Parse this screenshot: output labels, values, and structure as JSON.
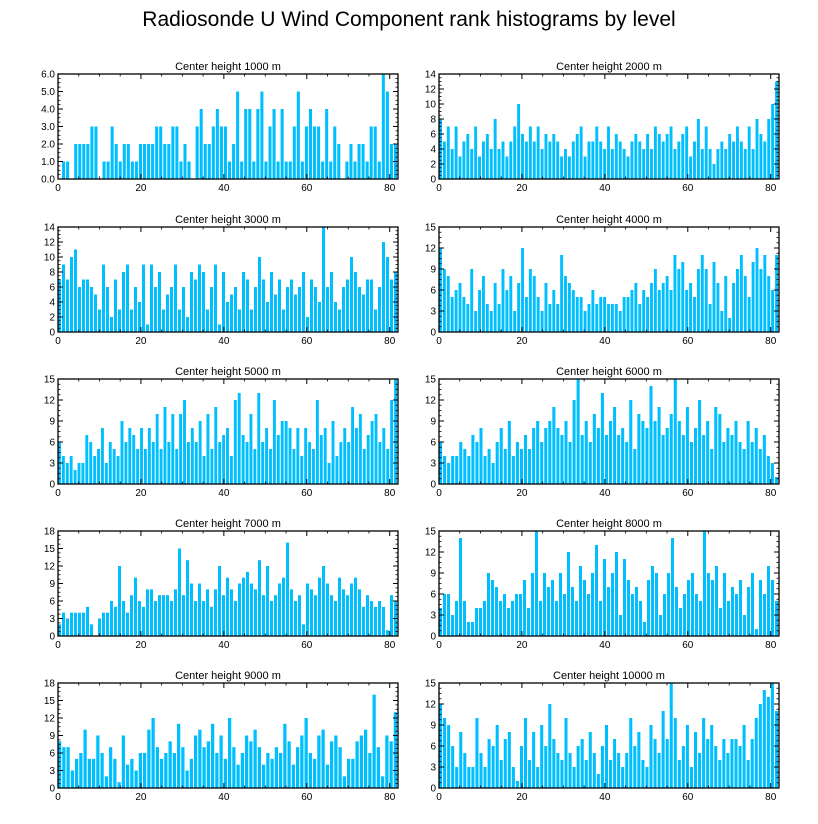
{
  "title": "Radiosonde U Wind Component rank histograms by level",
  "colors": {
    "bar": "#00BFFF",
    "axis": "#000000"
  },
  "chart_data": [
    {
      "type": "bar",
      "title": "Center height 1000 m",
      "xlim": [
        0,
        82
      ],
      "ylim": [
        0,
        6
      ],
      "yticks": [
        "0.0",
        "1.0",
        "2.0",
        "3.0",
        "4.0",
        "5.0",
        "6.0"
      ],
      "xticks": [
        0,
        20,
        40,
        60,
        80
      ],
      "values": [
        0,
        1,
        1,
        0,
        2,
        2,
        2,
        2,
        3,
        3,
        0,
        1,
        1,
        3,
        2,
        1,
        2,
        2,
        1,
        1,
        2,
        2,
        2,
        2,
        3,
        3,
        2,
        2,
        3,
        3,
        1,
        2,
        1,
        0,
        3,
        4,
        2,
        2,
        3,
        4,
        3,
        3,
        1,
        2,
        5,
        1,
        4,
        4,
        1,
        4,
        5,
        1,
        3,
        4,
        1,
        4,
        1,
        1,
        3,
        5,
        1,
        3,
        4,
        3,
        3,
        1,
        4,
        1,
        3,
        2,
        0,
        1,
        2,
        1,
        2,
        2,
        1,
        3,
        3,
        1,
        6,
        5,
        2,
        2
      ]
    },
    {
      "type": "bar",
      "title": "Center height 2000 m",
      "xlim": [
        0,
        82
      ],
      "ylim": [
        0,
        14
      ],
      "yticks": [
        "0",
        "2",
        "4",
        "6",
        "8",
        "10",
        "12",
        "14"
      ],
      "xticks": [
        0,
        20,
        40,
        60,
        80
      ],
      "values": [
        8,
        5,
        7,
        4,
        7,
        3,
        5,
        6,
        4,
        7,
        3,
        5,
        6,
        4,
        8,
        4,
        5,
        3,
        5,
        7,
        10,
        6,
        5,
        7,
        5,
        7,
        4,
        6,
        5,
        6,
        5,
        3,
        4,
        3,
        5,
        6,
        7,
        3,
        5,
        5,
        7,
        5,
        4,
        7,
        4,
        6,
        5,
        4,
        3,
        5,
        6,
        5,
        4,
        6,
        4,
        7,
        6,
        5,
        6,
        7,
        4,
        5,
        6,
        7,
        3,
        5,
        8,
        4,
        7,
        4,
        2,
        4,
        5,
        4,
        6,
        5,
        7,
        5,
        4,
        7,
        4,
        8,
        6,
        5,
        8,
        10,
        13
      ]
    },
    {
      "type": "bar",
      "title": "Center height 3000 m",
      "xlim": [
        0,
        82
      ],
      "ylim": [
        0,
        14
      ],
      "yticks": [
        "0",
        "2",
        "4",
        "6",
        "8",
        "10",
        "12",
        "14"
      ],
      "xticks": [
        0,
        20,
        40,
        60,
        80
      ],
      "values": [
        7,
        9,
        7,
        10,
        11,
        6,
        7,
        7,
        6,
        5,
        3,
        9,
        6,
        2,
        7,
        3,
        8,
        9,
        3,
        6,
        4,
        9,
        1,
        9,
        6,
        8,
        3,
        5,
        6,
        9,
        3,
        6,
        2,
        8,
        7,
        9,
        8,
        3,
        6,
        9,
        1,
        8,
        4,
        5,
        6,
        3,
        8,
        7,
        3,
        6,
        10,
        7,
        4,
        8,
        5,
        7,
        3,
        6,
        7,
        5,
        6,
        8,
        2,
        7,
        6,
        4,
        14,
        6,
        8,
        4,
        3,
        6,
        7,
        10,
        8,
        6,
        5,
        7,
        7,
        3,
        6,
        12,
        10,
        7,
        8
      ]
    },
    {
      "type": "bar",
      "title": "Center height 4000 m",
      "xlim": [
        0,
        82
      ],
      "ylim": [
        0,
        15
      ],
      "yticks": [
        "0",
        "3",
        "6",
        "9",
        "12",
        "15"
      ],
      "xticks": [
        0,
        20,
        40,
        60,
        80
      ],
      "values": [
        12,
        9,
        8,
        5,
        6,
        7,
        5,
        4,
        9,
        3,
        6,
        8,
        4,
        3,
        7,
        4,
        9,
        6,
        8,
        3,
        7,
        12,
        5,
        9,
        8,
        5,
        3,
        7,
        4,
        6,
        4,
        11,
        8,
        7,
        6,
        5,
        5,
        3,
        4,
        6,
        4,
        5,
        5,
        4,
        4,
        4,
        3,
        5,
        5,
        6,
        7,
        4,
        6,
        5,
        7,
        9,
        6,
        7,
        8,
        6,
        11,
        9,
        10,
        6,
        7,
        5,
        9,
        11,
        9,
        4,
        10,
        7,
        3,
        8,
        2,
        7,
        9,
        11,
        8,
        5,
        10,
        12,
        9,
        11,
        8,
        6,
        11
      ]
    },
    {
      "type": "bar",
      "title": "Center height 5000 m",
      "xlim": [
        0,
        82
      ],
      "ylim": [
        0,
        15
      ],
      "yticks": [
        "0",
        "3",
        "6",
        "9",
        "12",
        "15"
      ],
      "xticks": [
        0,
        20,
        40,
        60,
        80
      ],
      "values": [
        6,
        4,
        3,
        4,
        2,
        3,
        3,
        7,
        6,
        4,
        5,
        8,
        3,
        6,
        5,
        4,
        9,
        6,
        8,
        7,
        5,
        8,
        5,
        8,
        6,
        10,
        5,
        11,
        6,
        10,
        5,
        10,
        12,
        6,
        8,
        6,
        9,
        4,
        10,
        5,
        11,
        6,
        7,
        8,
        4,
        12,
        13,
        7,
        6,
        10,
        5,
        13,
        6,
        8,
        5,
        12,
        7,
        9,
        9,
        8,
        5,
        8,
        4,
        8,
        6,
        5,
        12,
        7,
        8,
        3,
        9,
        4,
        6,
        8,
        6,
        11,
        8,
        10,
        5,
        7,
        9,
        10,
        6,
        8,
        5,
        12,
        15
      ]
    },
    {
      "type": "bar",
      "title": "Center height 6000 m",
      "xlim": [
        0,
        82
      ],
      "ylim": [
        0,
        15
      ],
      "yticks": [
        "0",
        "3",
        "6",
        "9",
        "12",
        "15"
      ],
      "xticks": [
        0,
        20,
        40,
        60,
        80
      ],
      "values": [
        6,
        4,
        3,
        4,
        4,
        6,
        5,
        4,
        7,
        6,
        8,
        4,
        5,
        3,
        6,
        8,
        5,
        9,
        4,
        6,
        5,
        7,
        5,
        8,
        9,
        6,
        8,
        9,
        11,
        8,
        7,
        9,
        6,
        12,
        15,
        7,
        9,
        6,
        10,
        8,
        13,
        7,
        9,
        11,
        7,
        8,
        6,
        12,
        5,
        10,
        9,
        8,
        14,
        9,
        11,
        7,
        8,
        10,
        15,
        9,
        7,
        11,
        6,
        8,
        12,
        7,
        9,
        5,
        11,
        10,
        6,
        8,
        7,
        9,
        6,
        5,
        9,
        6,
        8,
        5,
        7,
        4,
        3,
        1
      ]
    },
    {
      "type": "bar",
      "title": "Center height 7000 m",
      "xlim": [
        0,
        82
      ],
      "ylim": [
        0,
        18
      ],
      "yticks": [
        "0",
        "3",
        "6",
        "9",
        "12",
        "15",
        "18"
      ],
      "xticks": [
        0,
        20,
        40,
        60,
        80
      ],
      "values": [
        2,
        4,
        3,
        4,
        4,
        4,
        4,
        5,
        2,
        0,
        3,
        4,
        4,
        6,
        5,
        12,
        6,
        4,
        7,
        10,
        6,
        5,
        8,
        8,
        6,
        7,
        7,
        7,
        6,
        8,
        15,
        7,
        13,
        9,
        6,
        9,
        6,
        8,
        5,
        8,
        12,
        7,
        10,
        8,
        6,
        9,
        10,
        11,
        9,
        8,
        13,
        7,
        12,
        6,
        7,
        9,
        10,
        16,
        8,
        6,
        7,
        2,
        9,
        8,
        7,
        10,
        12,
        9,
        7,
        6,
        10,
        8,
        7,
        9,
        10,
        8,
        5,
        7,
        6,
        5,
        6,
        5,
        1,
        7,
        6
      ]
    },
    {
      "type": "bar",
      "title": "Center height 8000 m",
      "xlim": [
        0,
        82
      ],
      "ylim": [
        0,
        15
      ],
      "yticks": [
        "0",
        "3",
        "6",
        "9",
        "12",
        "15"
      ],
      "xticks": [
        0,
        20,
        40,
        60,
        80
      ],
      "values": [
        4,
        6,
        6,
        3,
        5,
        14,
        5,
        2,
        2,
        4,
        4,
        5,
        9,
        8,
        7,
        5,
        6,
        4,
        5,
        6,
        6,
        8,
        4,
        9,
        15,
        5,
        9,
        7,
        8,
        5,
        9,
        6,
        12,
        7,
        5,
        10,
        8,
        6,
        9,
        13,
        5,
        11,
        7,
        9,
        12,
        3,
        11,
        8,
        6,
        7,
        5,
        2,
        8,
        10,
        9,
        3,
        6,
        9,
        14,
        7,
        4,
        6,
        8,
        9,
        6,
        5,
        15,
        9,
        8,
        10,
        4,
        9,
        5,
        7,
        6,
        8,
        3,
        7,
        9,
        1,
        8,
        6,
        10,
        8,
        5
      ]
    },
    {
      "type": "bar",
      "title": "Center height 9000 m",
      "xlim": [
        0,
        82
      ],
      "ylim": [
        0,
        18
      ],
      "yticks": [
        "0",
        "3",
        "6",
        "9",
        "12",
        "15",
        "18"
      ],
      "xticks": [
        0,
        20,
        40,
        60,
        80
      ],
      "values": [
        8,
        7,
        7,
        3,
        5,
        6,
        10,
        5,
        5,
        9,
        6,
        2,
        7,
        5,
        1,
        9,
        4,
        5,
        3,
        6,
        6,
        10,
        12,
        7,
        5,
        6,
        8,
        6,
        11,
        7,
        3,
        5,
        9,
        10,
        7,
        8,
        11,
        6,
        9,
        5,
        12,
        7,
        4,
        6,
        9,
        8,
        10,
        7,
        4,
        6,
        5,
        7,
        6,
        11,
        8,
        4,
        7,
        9,
        12,
        6,
        5,
        9,
        10,
        4,
        8,
        9,
        7,
        2,
        5,
        5,
        8,
        9,
        10,
        6,
        16,
        7,
        2,
        9,
        8,
        13
      ]
    },
    {
      "type": "bar",
      "title": "Center height 10000 m",
      "xlim": [
        0,
        82
      ],
      "ylim": [
        0,
        15
      ],
      "yticks": [
        "0",
        "3",
        "6",
        "9",
        "12",
        "15"
      ],
      "xticks": [
        0,
        20,
        40,
        60,
        80
      ],
      "values": [
        12,
        10,
        9,
        6,
        3,
        8,
        5,
        3,
        3,
        10,
        5,
        3,
        7,
        6,
        9,
        4,
        7,
        8,
        3,
        1,
        6,
        10,
        4,
        8,
        3,
        9,
        6,
        12,
        7,
        5,
        4,
        10,
        5,
        3,
        6,
        7,
        4,
        8,
        5,
        2,
        6,
        9,
        4,
        7,
        5,
        3,
        5,
        10,
        6,
        8,
        4,
        3,
        9,
        7,
        5,
        11,
        7,
        15,
        10,
        4,
        6,
        9,
        3,
        8,
        5,
        10,
        7,
        9,
        6,
        4,
        7,
        5,
        7,
        7,
        6,
        9,
        4,
        7,
        10,
        12,
        14,
        13,
        15,
        11
      ]
    }
  ]
}
